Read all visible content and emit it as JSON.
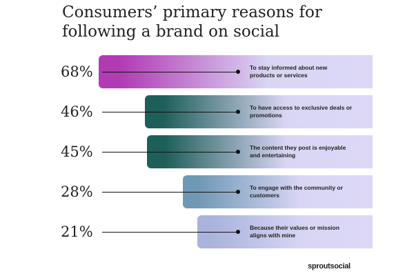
{
  "chart_data": {
    "type": "bar",
    "orientation": "horizontal",
    "title": "Consumers’ primary reasons for following a brand on social",
    "categories": [
      "To stay informed about new products or services",
      "To have access to exclusive deals or promotions",
      "The content they post is enjoyable and entertaining",
      "To engage with the community or customers",
      "Because their values or mission aligns with mine"
    ],
    "values": [
      68,
      46,
      45,
      28,
      21
    ],
    "value_labels": [
      "68%",
      "46%",
      "45%",
      "28%",
      "21%"
    ],
    "colors": [
      "#b23bb5",
      "#1f5f5a",
      "#1f5f5a",
      "#6f98b6",
      "#a9b3dc"
    ],
    "source": "sproutsocial"
  }
}
